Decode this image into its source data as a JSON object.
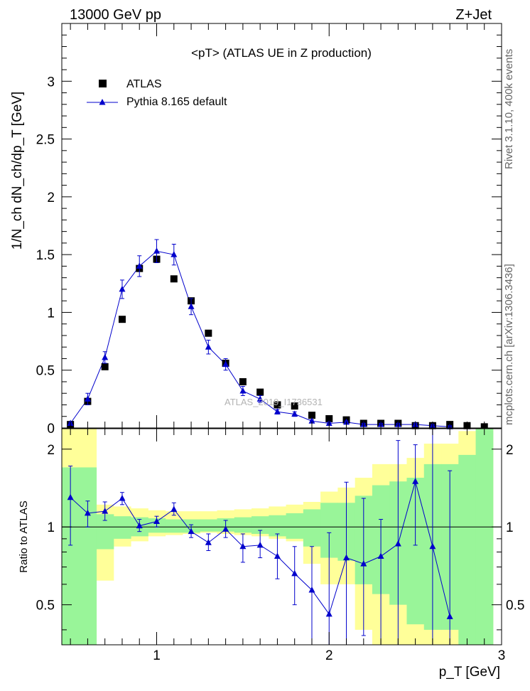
{
  "header": {
    "left": "13000 GeV pp",
    "right": "Z+Jet",
    "side_top": "Rivet 3.1.10,  400k events",
    "side_bottom": "mcplots.cern.ch [arXiv:1306.3436]"
  },
  "colors": {
    "data": "#000000",
    "mc": "#0000cc",
    "band_inner": "#99f599",
    "band_outer": "#ffff99",
    "watermark": "#b3b3b3"
  },
  "chart_data": [
    {
      "type": "scatter",
      "title": "<pT> (ATLAS UE in Z production)",
      "xlabel": "p_T [GeV]",
      "ylabel": "1/N_ch dN_ch/dp_T [GeV]",
      "xlim": [
        0.45,
        3.0
      ],
      "ylim": [
        0,
        3.5
      ],
      "yticks": [
        "0",
        "0.5",
        "1",
        "1.5",
        "2",
        "2.5",
        "3"
      ],
      "legend": {
        "position": "top-left",
        "entries": [
          "ATLAS",
          "Pythia 8.165 default"
        ]
      },
      "watermark": "ATLAS_2019_I1736531",
      "x": [
        0.5,
        0.6,
        0.7,
        0.8,
        0.9,
        1.0,
        1.1,
        1.2,
        1.3,
        1.4,
        1.5,
        1.6,
        1.7,
        1.8,
        1.9,
        2.0,
        2.1,
        2.2,
        2.3,
        2.4,
        2.5,
        2.6,
        2.7,
        2.8,
        2.9
      ],
      "series": [
        {
          "name": "ATLAS",
          "marker": "square",
          "values": [
            0.03,
            0.23,
            0.53,
            0.94,
            1.38,
            1.46,
            1.29,
            1.1,
            0.82,
            0.56,
            0.4,
            0.31,
            0.2,
            0.19,
            0.11,
            0.08,
            0.07,
            0.04,
            0.04,
            0.04,
            0.02,
            0.02,
            0.03,
            0.02,
            0.01
          ]
        },
        {
          "name": "Pythia 8.165 default",
          "marker": "triangle",
          "values": [
            0.04,
            0.25,
            0.61,
            1.2,
            1.4,
            1.53,
            1.5,
            1.05,
            0.7,
            0.55,
            0.32,
            0.25,
            0.14,
            0.12,
            0.06,
            0.04,
            0.05,
            0.03,
            0.03,
            0.03,
            0.03,
            0.02,
            0.01,
            null,
            null
          ],
          "errors": [
            0.01,
            0.05,
            0.05,
            0.08,
            0.09,
            0.1,
            0.09,
            0.07,
            0.06,
            0.05,
            0.04,
            0.03,
            0.02,
            0.02,
            0.01,
            0.01,
            0.01,
            0.01,
            0.01,
            0.01,
            0.01,
            0.01,
            0.01,
            null,
            null
          ]
        }
      ]
    },
    {
      "type": "line",
      "ylabel": "Ratio to ATLAS",
      "xlim": [
        0.45,
        3.0
      ],
      "ylim": [
        0.35,
        2.4
      ],
      "yscale": "log",
      "yticks": [
        "0.5",
        "1",
        "2"
      ],
      "xticks": [
        "1",
        "2",
        "3"
      ],
      "reference_line": 1,
      "x": [
        0.5,
        0.6,
        0.7,
        0.8,
        0.9,
        1.0,
        1.1,
        1.2,
        1.3,
        1.4,
        1.5,
        1.6,
        1.7,
        1.8,
        1.9,
        2.0,
        2.1,
        2.2,
        2.3,
        2.4,
        2.5,
        2.6,
        2.7
      ],
      "series": [
        {
          "name": "Pythia 8.165 default",
          "values": [
            1.3,
            1.13,
            1.15,
            1.29,
            1.01,
            1.05,
            1.17,
            0.96,
            0.87,
            0.98,
            0.84,
            0.85,
            0.77,
            0.66,
            0.57,
            0.46,
            0.76,
            0.72,
            0.77,
            0.86,
            1.5,
            0.84,
            0.45
          ],
          "err_lo": [
            0.45,
            0.13,
            0.09,
            0.07,
            0.05,
            0.05,
            0.06,
            0.05,
            0.06,
            0.07,
            0.11,
            0.09,
            0.14,
            0.16,
            0.22,
            0.11,
            0.41,
            0.34,
            0.42,
            0.51,
            0.65,
            0.84,
            0.45
          ],
          "err_hi": [
            0.42,
            0.13,
            0.1,
            0.07,
            0.06,
            0.05,
            0.07,
            0.06,
            0.07,
            0.08,
            0.1,
            0.12,
            0.17,
            0.18,
            0.27,
            0.49,
            0.73,
            0.57,
            0.3,
            1.3,
            0.58,
            1.65,
            1.2
          ]
        }
      ],
      "bands": {
        "edges": [
          0.45,
          0.55,
          0.65,
          0.75,
          0.85,
          0.95,
          1.05,
          1.15,
          1.25,
          1.35,
          1.45,
          1.55,
          1.65,
          1.75,
          1.85,
          1.95,
          2.05,
          2.15,
          2.25,
          2.35,
          2.45,
          2.55,
          2.65,
          2.75,
          2.85,
          2.95
        ],
        "outer_lo": [
          0.35,
          0.35,
          0.62,
          0.84,
          0.88,
          0.92,
          0.93,
          0.94,
          0.95,
          0.94,
          0.93,
          0.92,
          0.9,
          0.88,
          0.72,
          0.6,
          0.6,
          0.4,
          0.35,
          0.35,
          0.35,
          0.35,
          0.35,
          0.35,
          0.35
        ],
        "outer_hi": [
          2.4,
          2.4,
          1.22,
          1.2,
          1.18,
          1.16,
          1.15,
          1.15,
          1.15,
          1.16,
          1.17,
          1.18,
          1.2,
          1.22,
          1.25,
          1.37,
          1.42,
          1.55,
          1.75,
          1.75,
          1.85,
          2.1,
          2.1,
          2.35,
          2.4
        ],
        "inner_lo": [
          0.35,
          0.35,
          0.82,
          0.9,
          0.92,
          0.95,
          0.95,
          0.95,
          0.96,
          0.96,
          0.95,
          0.94,
          0.92,
          0.9,
          0.84,
          0.76,
          0.74,
          0.6,
          0.55,
          0.5,
          0.42,
          0.4,
          0.4,
          0.35,
          0.35
        ],
        "inner_hi": [
          1.7,
          1.7,
          1.12,
          1.1,
          1.09,
          1.08,
          1.07,
          1.07,
          1.07,
          1.08,
          1.09,
          1.1,
          1.11,
          1.13,
          1.17,
          1.24,
          1.24,
          1.32,
          1.45,
          1.5,
          1.55,
          1.75,
          1.75,
          1.9,
          2.4
        ]
      }
    }
  ]
}
